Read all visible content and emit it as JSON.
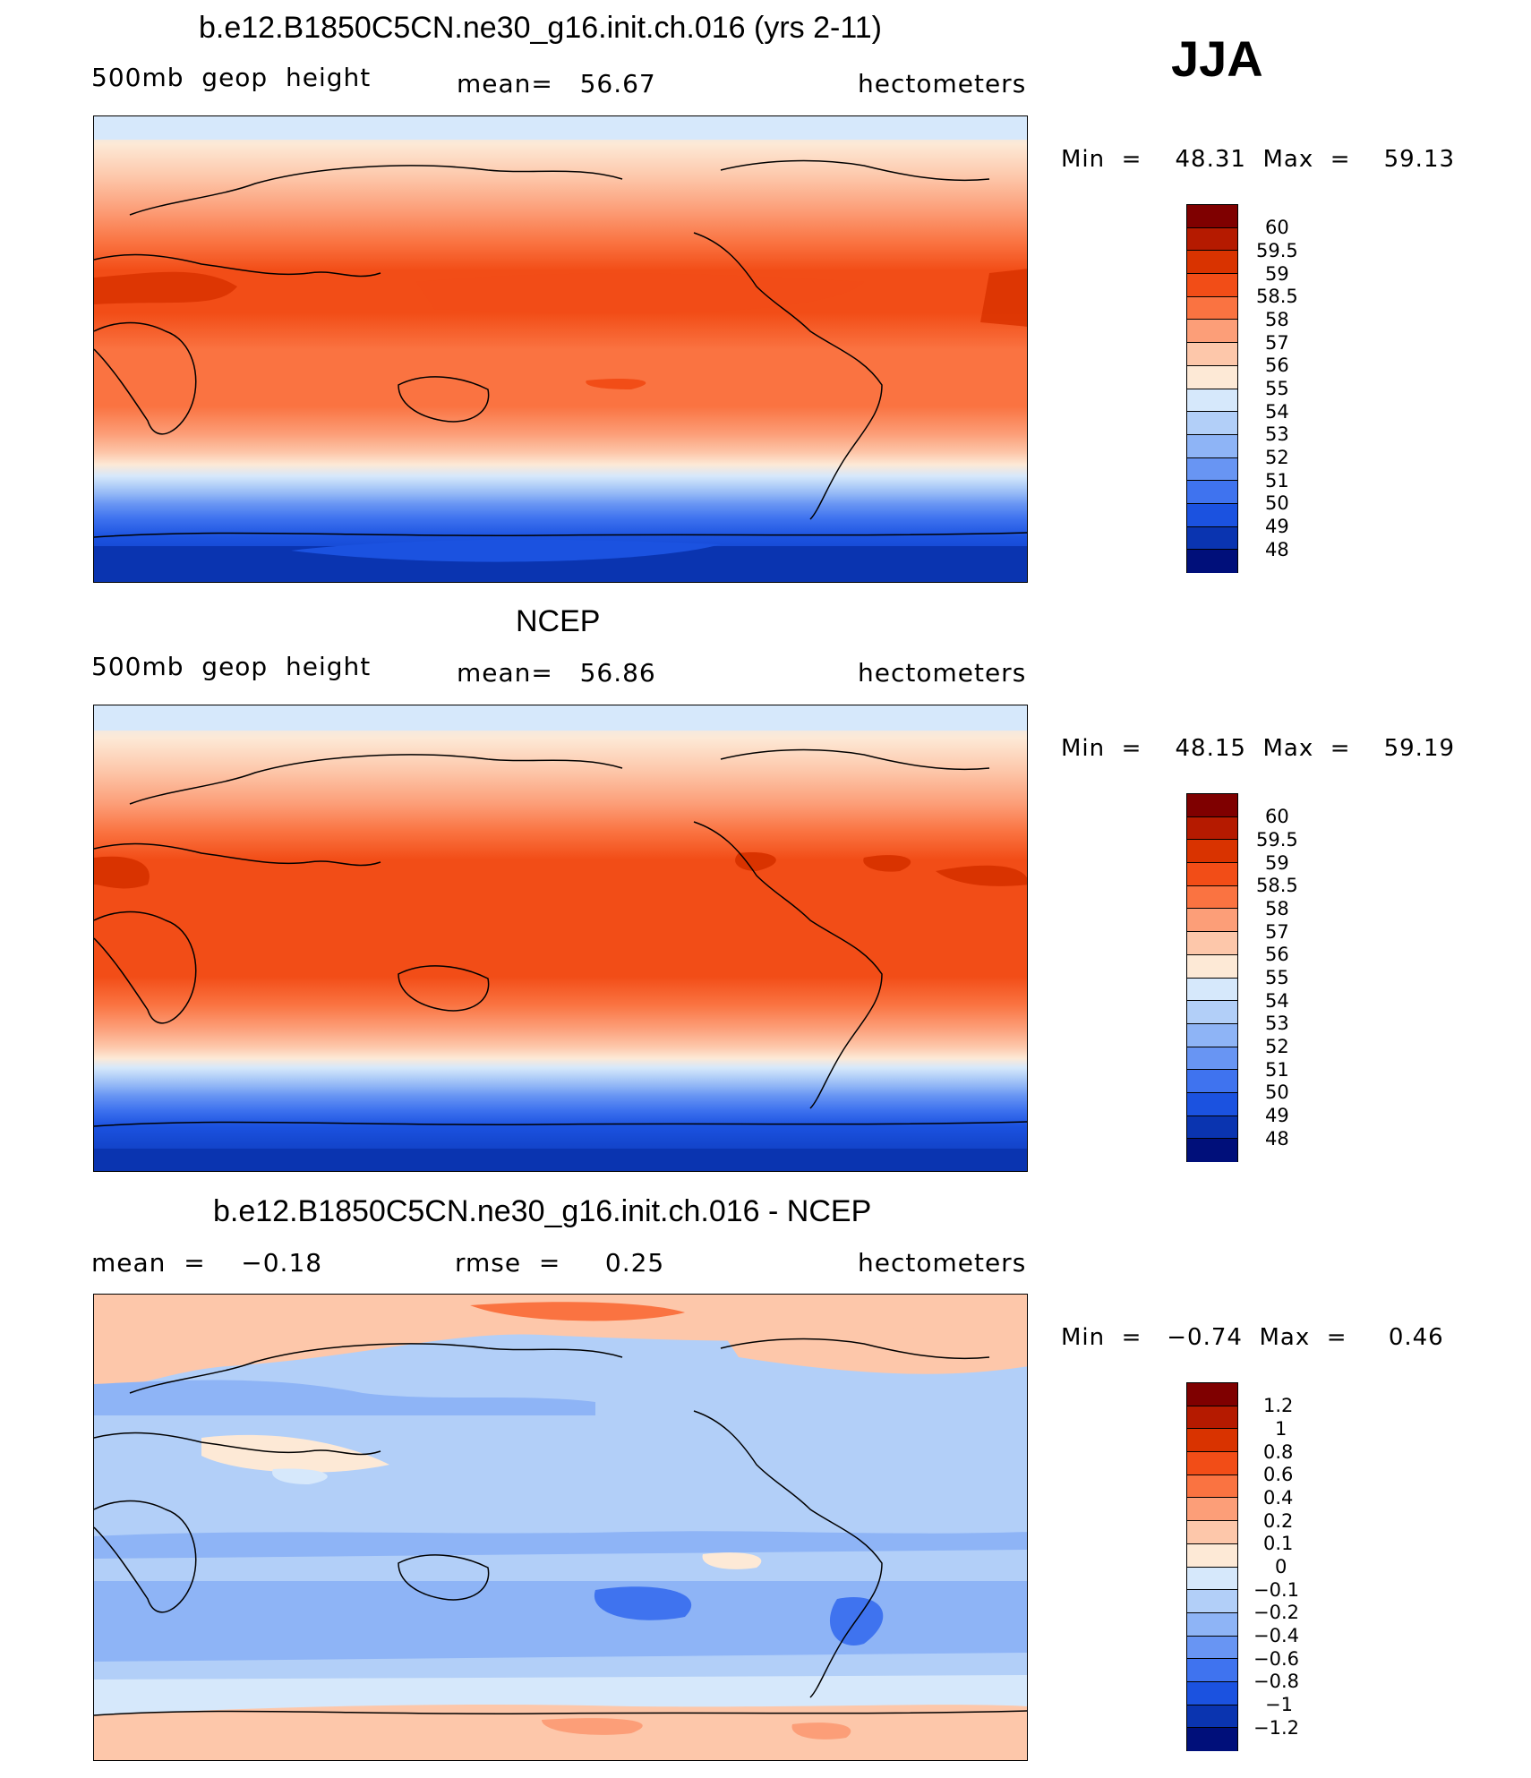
{
  "season": "JJA",
  "units": "hectometers",
  "panels": [
    {
      "title": "b.e12.B1850C5CN.ne30_g16.init.ch.016 (yrs 2-11)",
      "left_label": "500mb  geop  height",
      "center_label": "mean=   56.67",
      "right_label": "hectometers",
      "minmax": "Min  =    48.31  Max  =    59.13",
      "colorbar_labels": [
        "60",
        "59.5",
        "59",
        "58.5",
        "58",
        "57",
        "56",
        "55",
        "54",
        "53",
        "52",
        "51",
        "50",
        "49",
        "48"
      ]
    },
    {
      "title": "NCEP",
      "left_label": "500mb  geop  height",
      "center_label": "mean=   56.86",
      "right_label": "hectometers",
      "minmax": "Min  =    48.15  Max  =    59.19",
      "colorbar_labels": [
        "60",
        "59.5",
        "59",
        "58.5",
        "58",
        "57",
        "56",
        "55",
        "54",
        "53",
        "52",
        "51",
        "50",
        "49",
        "48"
      ]
    },
    {
      "title": "b.e12.B1850C5CN.ne30_g16.init.ch.016 - NCEP",
      "left_label": "mean  =    −0.18",
      "center_label": "rmse  =     0.25",
      "right_label": "hectometers",
      "minmax": "Min  =   −0.74  Max  =     0.46",
      "colorbar_labels": [
        "1.2",
        "1",
        "0.8",
        "0.6",
        "0.4",
        "0.2",
        "0.1",
        "0",
        "−0.1",
        "−0.2",
        "−0.4",
        "−0.6",
        "−0.8",
        "−1",
        "−1.2"
      ]
    }
  ],
  "colors": {
    "full_field": [
      "#7f0000",
      "#b51a00",
      "#d93300",
      "#f24d17",
      "#fa7341",
      "#fc9e78",
      "#fdc7aa",
      "#fde9d6",
      "#d6e8fb",
      "#b2cff8",
      "#8eb4f6",
      "#6895f3",
      "#3f73ef",
      "#1b52e0",
      "#0a34b0",
      "#000f7a"
    ],
    "difference": [
      "#7f0000",
      "#b51a00",
      "#d93300",
      "#f24d17",
      "#fa7341",
      "#fc9e78",
      "#fdc7aa",
      "#fde9d6",
      "#d6e8fb",
      "#b2cff8",
      "#8eb4f6",
      "#6895f3",
      "#3f73ef",
      "#1b52e0",
      "#0a34b0",
      "#000f7a"
    ]
  }
}
